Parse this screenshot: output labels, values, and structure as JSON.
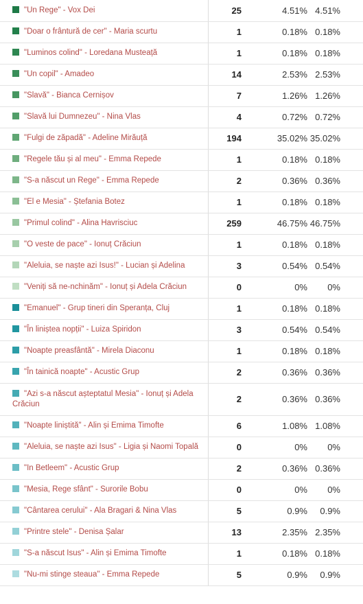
{
  "rows": [
    {
      "title": "\"Un Rege\" - Vox Dei",
      "count": "25",
      "pct": "4.51%",
      "pct2": "4.51%",
      "color": "#1e7a47"
    },
    {
      "title": "\"Doar o frântură de cer\" - Maria scurtu",
      "count": "1",
      "pct": "0.18%",
      "pct2": "0.18%",
      "color": "#23804b"
    },
    {
      "title": "\"Luminos colind\" - Loredana Musteață",
      "count": "1",
      "pct": "0.18%",
      "pct2": "0.18%",
      "color": "#2e8751"
    },
    {
      "title": "\"Un copil\" - Amadeo",
      "count": "14",
      "pct": "2.53%",
      "pct2": "2.53%",
      "color": "#3a8e59"
    },
    {
      "title": "\"Slavă\" - Bianca Cernișov",
      "count": "7",
      "pct": "1.26%",
      "pct2": "1.26%",
      "color": "#469660"
    },
    {
      "title": "\"Slavă lui Dumnezeu\" - Nina Vlas",
      "count": "4",
      "pct": "0.72%",
      "pct2": "0.72%",
      "color": "#529e69"
    },
    {
      "title": "\"Fulgi de zăpadă\" - Adeline Mirăuță",
      "count": "194",
      "pct": "35.02%",
      "pct2": "35.02%",
      "color": "#60a673"
    },
    {
      "title": "\"Regele tău și al meu\" - Emma Repede",
      "count": "1",
      "pct": "0.18%",
      "pct2": "0.18%",
      "color": "#6fae7e"
    },
    {
      "title": "\"S-a născut un Rege\" - Emma Repede",
      "count": "2",
      "pct": "0.36%",
      "pct2": "0.36%",
      "color": "#7db689"
    },
    {
      "title": "\"El e Mesia\" - Ștefania Botez",
      "count": "1",
      "pct": "0.18%",
      "pct2": "0.18%",
      "color": "#8bbf95"
    },
    {
      "title": "\"Primul colind\" - Alina Havrisciuc",
      "count": "259",
      "pct": "46.75%",
      "pct2": "46.75%",
      "color": "#99c7a1"
    },
    {
      "title": "\"O veste de pace\" - Ionuț Crăciun",
      "count": "1",
      "pct": "0.18%",
      "pct2": "0.18%",
      "color": "#a7cfad"
    },
    {
      "title": "\"Aleluia, se naște azi Isus!\" - Lucian și Adelina",
      "count": "3",
      "pct": "0.54%",
      "pct2": "0.54%",
      "color": "#b3d6b8"
    },
    {
      "title": "\"Veniți să ne-nchinăm\" - Ionuț și Adela Crăciun",
      "count": "0",
      "pct": "0%",
      "pct2": "0%",
      "color": "#c0dec3"
    },
    {
      "title": "\"Emanuel\" - Grup tineri din Speranța, Cluj",
      "count": "1",
      "pct": "0.18%",
      "pct2": "0.18%",
      "color": "#1b8f99"
    },
    {
      "title": "\"În liniștea nopții\" - Luiza Spiridon",
      "count": "3",
      "pct": "0.54%",
      "pct2": "0.54%",
      "color": "#2196a0"
    },
    {
      "title": "\"Noapte preasfântă\" - Mirela Diaconu",
      "count": "1",
      "pct": "0.18%",
      "pct2": "0.18%",
      "color": "#2c9da7"
    },
    {
      "title": "\"În tainică noapte\" - Acustic Grup",
      "count": "2",
      "pct": "0.36%",
      "pct2": "0.36%",
      "color": "#38a4ae"
    },
    {
      "title": "\"Azi s-a născut așteptatul Mesia\" - Ionuț și Adela Crăciun",
      "count": "2",
      "pct": "0.36%",
      "pct2": "0.36%",
      "color": "#45abb4",
      "tall": true
    },
    {
      "title": "\"Noapte liniștită\" - Alin și Emima Timofte",
      "count": "6",
      "pct": "1.08%",
      "pct2": "1.08%",
      "color": "#52b1ba"
    },
    {
      "title": "\"Aleluia, se naște azi Isus\" - Ligia și Naomi Topală",
      "count": "0",
      "pct": "0%",
      "pct2": "0%",
      "color": "#5fb8c0"
    },
    {
      "title": "\"In Betleem\" - Acustic Grup",
      "count": "2",
      "pct": "0.36%",
      "pct2": "0.36%",
      "color": "#6cbec6"
    },
    {
      "title": "\"Mesia, Rege sfânt\" - Surorile Bobu",
      "count": "0",
      "pct": "0%",
      "pct2": "0%",
      "color": "#79c4cb"
    },
    {
      "title": "\"Cântarea cerului\" - Ala Bragari & Nina Vlas",
      "count": "5",
      "pct": "0.9%",
      "pct2": "0.9%",
      "color": "#86cad1"
    },
    {
      "title": "\"Printre stele\" - Denisa Șalar",
      "count": "13",
      "pct": "2.35%",
      "pct2": "2.35%",
      "color": "#93d0d6"
    },
    {
      "title": "\"S-a născut Isus\" - Alin și Emima Timofte",
      "count": "1",
      "pct": "0.18%",
      "pct2": "0.18%",
      "color": "#a0d6db"
    },
    {
      "title": "\"Nu-mi stinge steaua\" - Emma Repede",
      "count": "5",
      "pct": "0.9%",
      "pct2": "0.9%",
      "color": "#addce0"
    }
  ]
}
